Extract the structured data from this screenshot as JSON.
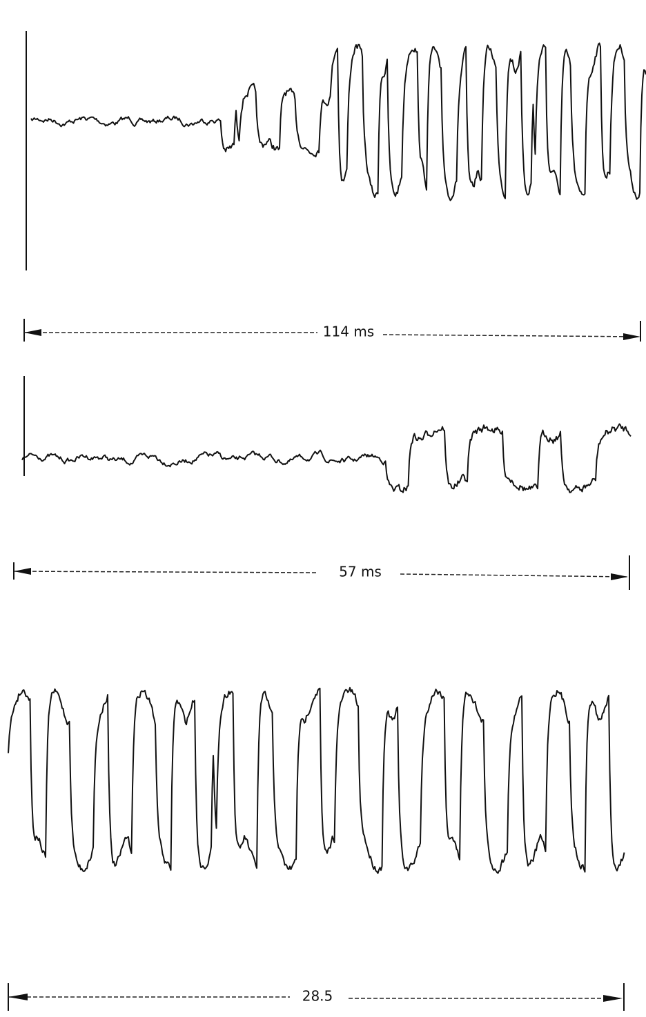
{
  "figure": {
    "scales": [
      {
        "label": "114 ms"
      },
      {
        "label": "57 ms"
      },
      {
        "label": "28.5"
      }
    ]
  }
}
